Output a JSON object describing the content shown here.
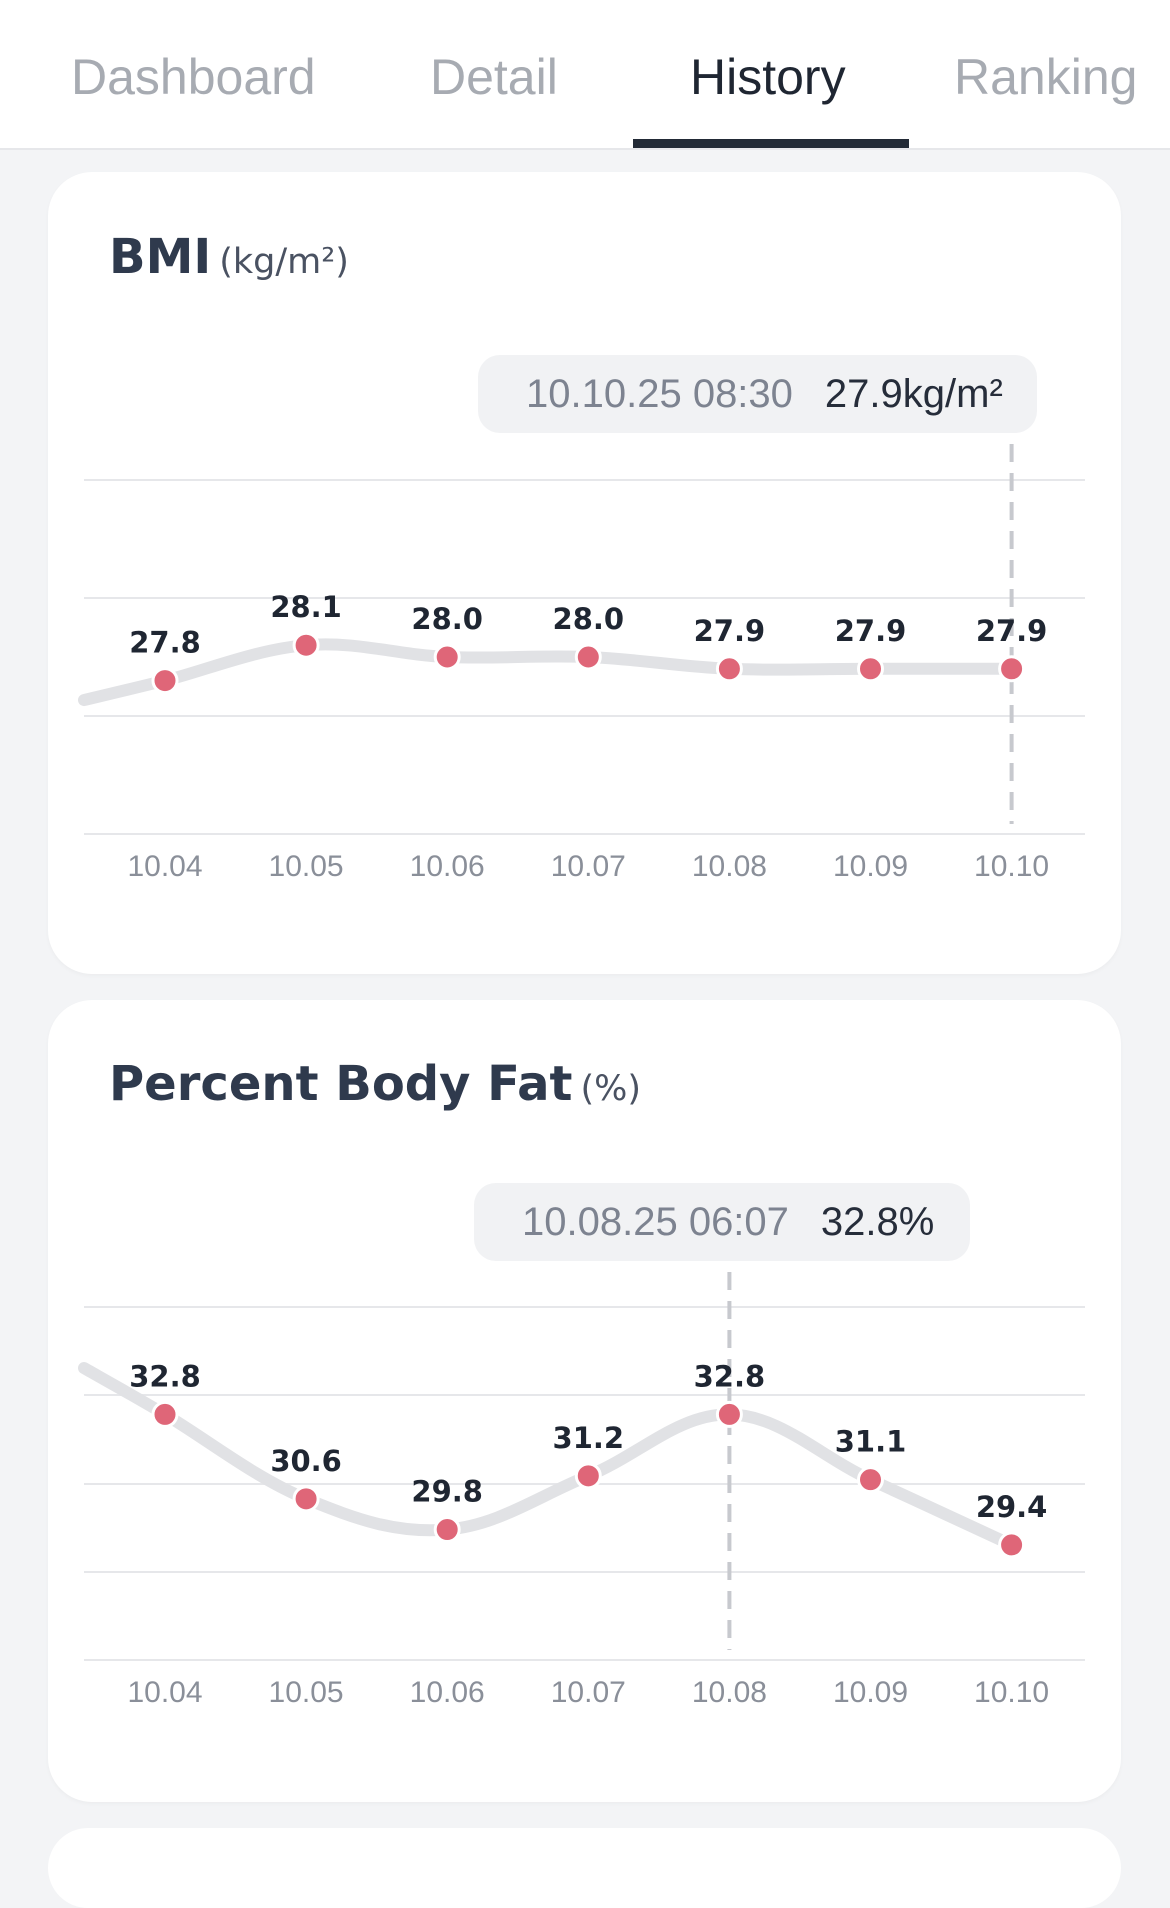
{
  "tabs": [
    {
      "label": "Dashboard",
      "active": false
    },
    {
      "label": "Detail",
      "active": false
    },
    {
      "label": "History",
      "active": true
    },
    {
      "label": "Ranking",
      "active": false
    }
  ],
  "cards": [
    {
      "title": "BMI",
      "unit": "(kg/m²)",
      "tooltip": {
        "date": "10.10.25 08:30",
        "value": "27.9kg/m²"
      }
    },
    {
      "title": "Percent Body Fat",
      "unit": "(%)",
      "tooltip": {
        "date": "10.08.25 06:07",
        "value": "32.8%"
      }
    }
  ],
  "chart_data": [
    {
      "type": "line",
      "title": "BMI",
      "unit": "kg/m²",
      "categories": [
        "10.04",
        "10.05",
        "10.06",
        "10.07",
        "10.08",
        "10.09",
        "10.10"
      ],
      "values": [
        27.8,
        28.1,
        28.0,
        28.0,
        27.9,
        27.9,
        27.9
      ],
      "labels": [
        "27.8",
        "28.1",
        "28.0",
        "28.0",
        "27.9",
        "27.9",
        "27.9"
      ],
      "ylim": [
        26.5,
        29.5
      ],
      "grid": true,
      "highlight_index": 6,
      "colors": {
        "line": "#e1e2e5",
        "point": "#df6678",
        "guide": "#c7c9ce"
      }
    },
    {
      "type": "line",
      "title": "Percent Body Fat",
      "unit": "%",
      "categories": [
        "10.04",
        "10.05",
        "10.06",
        "10.07",
        "10.08",
        "10.09",
        "10.10"
      ],
      "values": [
        32.8,
        30.6,
        29.8,
        31.2,
        32.8,
        31.1,
        29.4
      ],
      "labels": [
        "32.8",
        "30.6",
        "29.8",
        "31.2",
        "32.8",
        "31.1",
        "29.4"
      ],
      "ylim": [
        26.4,
        35.6
      ],
      "grid": true,
      "highlight_index": 4,
      "colors": {
        "line": "#e1e2e5",
        "point": "#df6678",
        "guide": "#c7c9ce"
      }
    }
  ]
}
